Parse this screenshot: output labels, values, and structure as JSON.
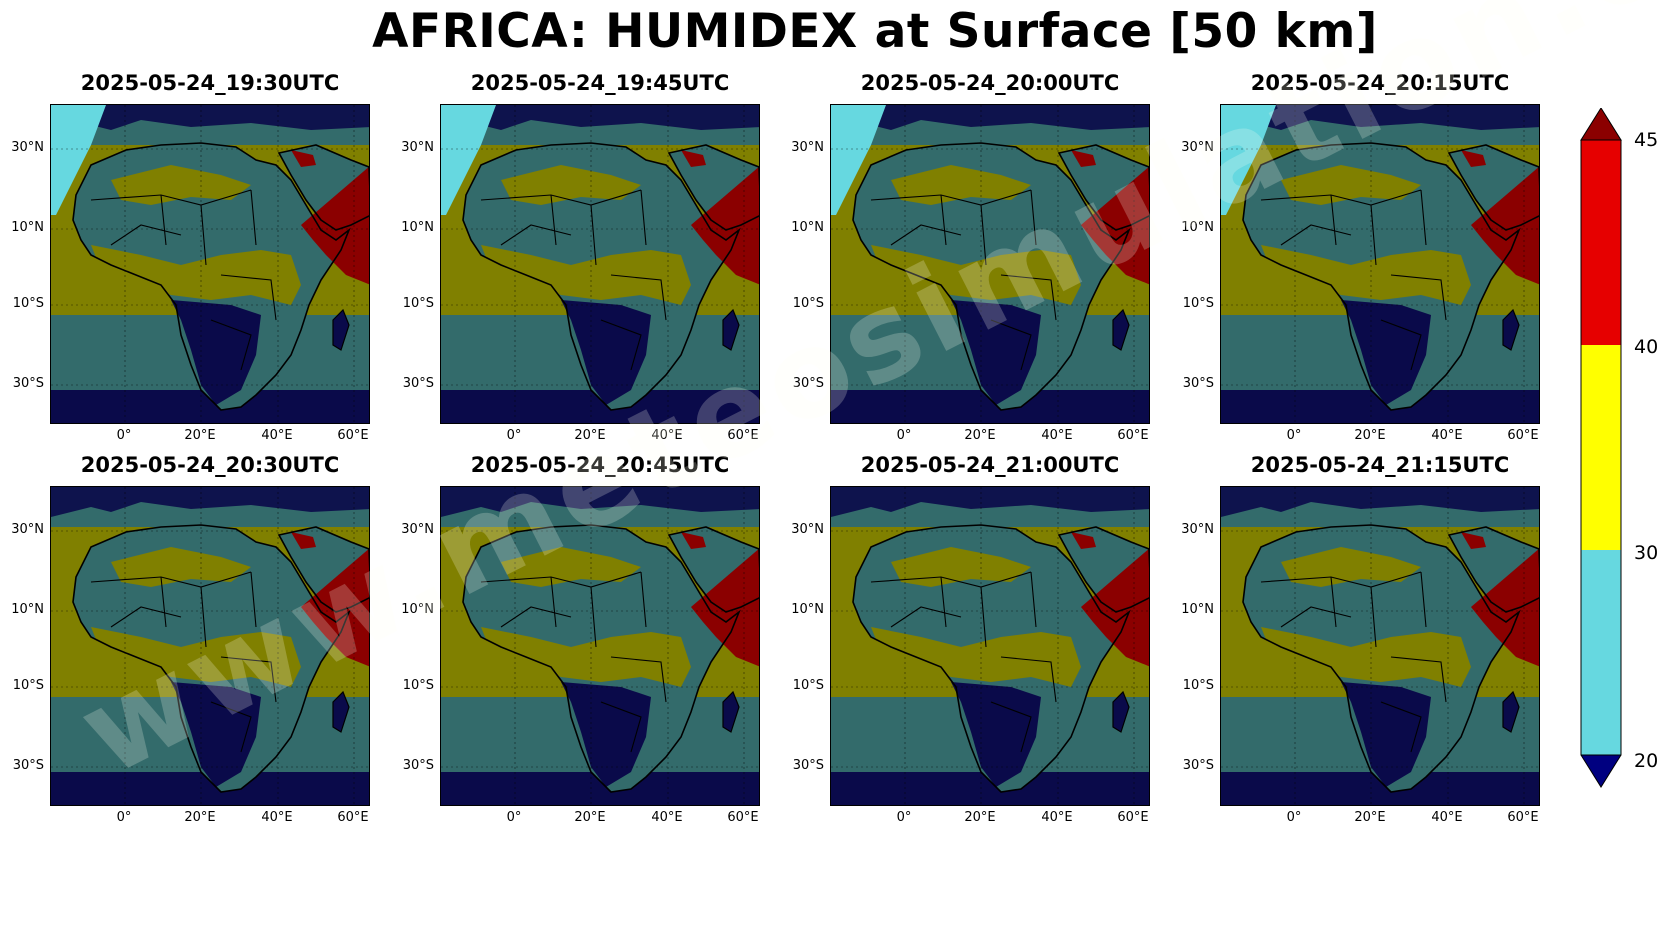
{
  "title": "AFRICA: HUMIDEX at Surface [50 km]",
  "panels": [
    {
      "time": "2025-05-24_19:30UTC"
    },
    {
      "time": "2025-05-24_19:45UTC"
    },
    {
      "time": "2025-05-24_20:00UTC"
    },
    {
      "time": "2025-05-24_20:15UTC"
    },
    {
      "time": "2025-05-24_20:30UTC"
    },
    {
      "time": "2025-05-24_20:45UTC"
    },
    {
      "time": "2025-05-24_21:00UTC"
    },
    {
      "time": "2025-05-24_21:15UTC"
    }
  ],
  "axes": {
    "lat_ticks": [
      "30°N",
      "10°N",
      "10°S",
      "30°S"
    ],
    "lon_ticks": [
      "0°",
      "20°E",
      "40°E",
      "60°E"
    ]
  },
  "colorbar": {
    "labels": [
      "45",
      "40",
      "30",
      "20"
    ],
    "colors": {
      "over": "#8b0000",
      "red": "#e60000",
      "yellow": "#ffff00",
      "cyan": "#66d8e0",
      "under": "#000080"
    }
  },
  "map_colors": {
    "ocean_cool": "#0a0a4a",
    "teal": "#336b6b",
    "olive": "#808000",
    "hot": "#8b0000",
    "light": "#66d8e0",
    "land_dark": "#0a0a4a"
  },
  "watermark": "www.meteosimulation.com"
}
